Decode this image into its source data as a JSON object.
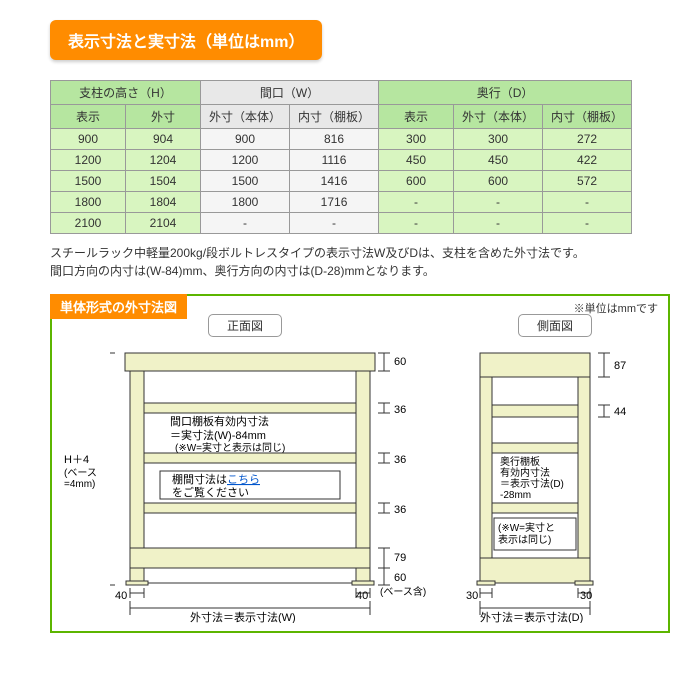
{
  "header": "表示寸法と実寸法（単位はmm）",
  "colors": {
    "accent_orange": "#ff8c00",
    "border_green": "#5cb500",
    "header_green": "#b6e6a0",
    "row_green": "#d8f5c0",
    "header_gray": "#e8e8e8",
    "row_gray": "#f5f5f5",
    "shelf_fill": "#f0f2c8",
    "link": "#0055cc"
  },
  "table": {
    "group_headers": [
      "支柱の高さ（H）",
      "間口（W）",
      "奥行（D）"
    ],
    "sub_headers": [
      "表示",
      "外寸",
      "外寸（本体）",
      "内寸（棚板）",
      "表示",
      "外寸（本体）",
      "内寸（棚板）"
    ],
    "rows": [
      [
        "900",
        "904",
        "900",
        "816",
        "300",
        "300",
        "272"
      ],
      [
        "1200",
        "1204",
        "1200",
        "1116",
        "450",
        "450",
        "422"
      ],
      [
        "1500",
        "1504",
        "1500",
        "1416",
        "600",
        "600",
        "572"
      ],
      [
        "1800",
        "1804",
        "1800",
        "1716",
        "-",
        "-",
        "-"
      ],
      [
        "2100",
        "2104",
        "-",
        "-",
        "-",
        "-",
        "-"
      ]
    ]
  },
  "note1": "スチールラック中軽量200kg/段ボルトレスタイプの表示寸法W及びDは、支柱を含めた外寸法です。",
  "note2": "間口方向の内寸は(W-84)mm、奥行方向の内寸は(D-28)mmとなります。",
  "diagram": {
    "title": "単体形式の外寸法図",
    "unit_note": "※単位はmmです",
    "front_label": "正面図",
    "side_label": "側面図",
    "front": {
      "h_plus_4": "H＋4",
      "base_4mm": "(ベース\n=4mm)",
      "eff_line1": "間口棚板有効内寸法",
      "eff_line2": "＝実寸法(W)-84mm",
      "eff_line3": "(※W=実寸と表示は同じ)",
      "shelf_dim1": "棚間寸法は",
      "shelf_dim_link": "こちら",
      "shelf_dim2": "をご覧ください",
      "d60": "60",
      "d36": "36",
      "d79": "79",
      "d40": "40",
      "base_incl": "(ベース含)",
      "bottom": "外寸法＝表示寸法(W)"
    },
    "side": {
      "d87": "87",
      "d44": "44",
      "d30": "30",
      "eff_l1": "奥行棚板",
      "eff_l2": "有効内寸法",
      "eff_l3": "＝表示寸法(D)",
      "eff_l4": "-28mm",
      "note_l1": "(※W=実寸と",
      "note_l2": "表示は同じ)",
      "bottom": "外寸法＝表示寸法(D)"
    }
  }
}
